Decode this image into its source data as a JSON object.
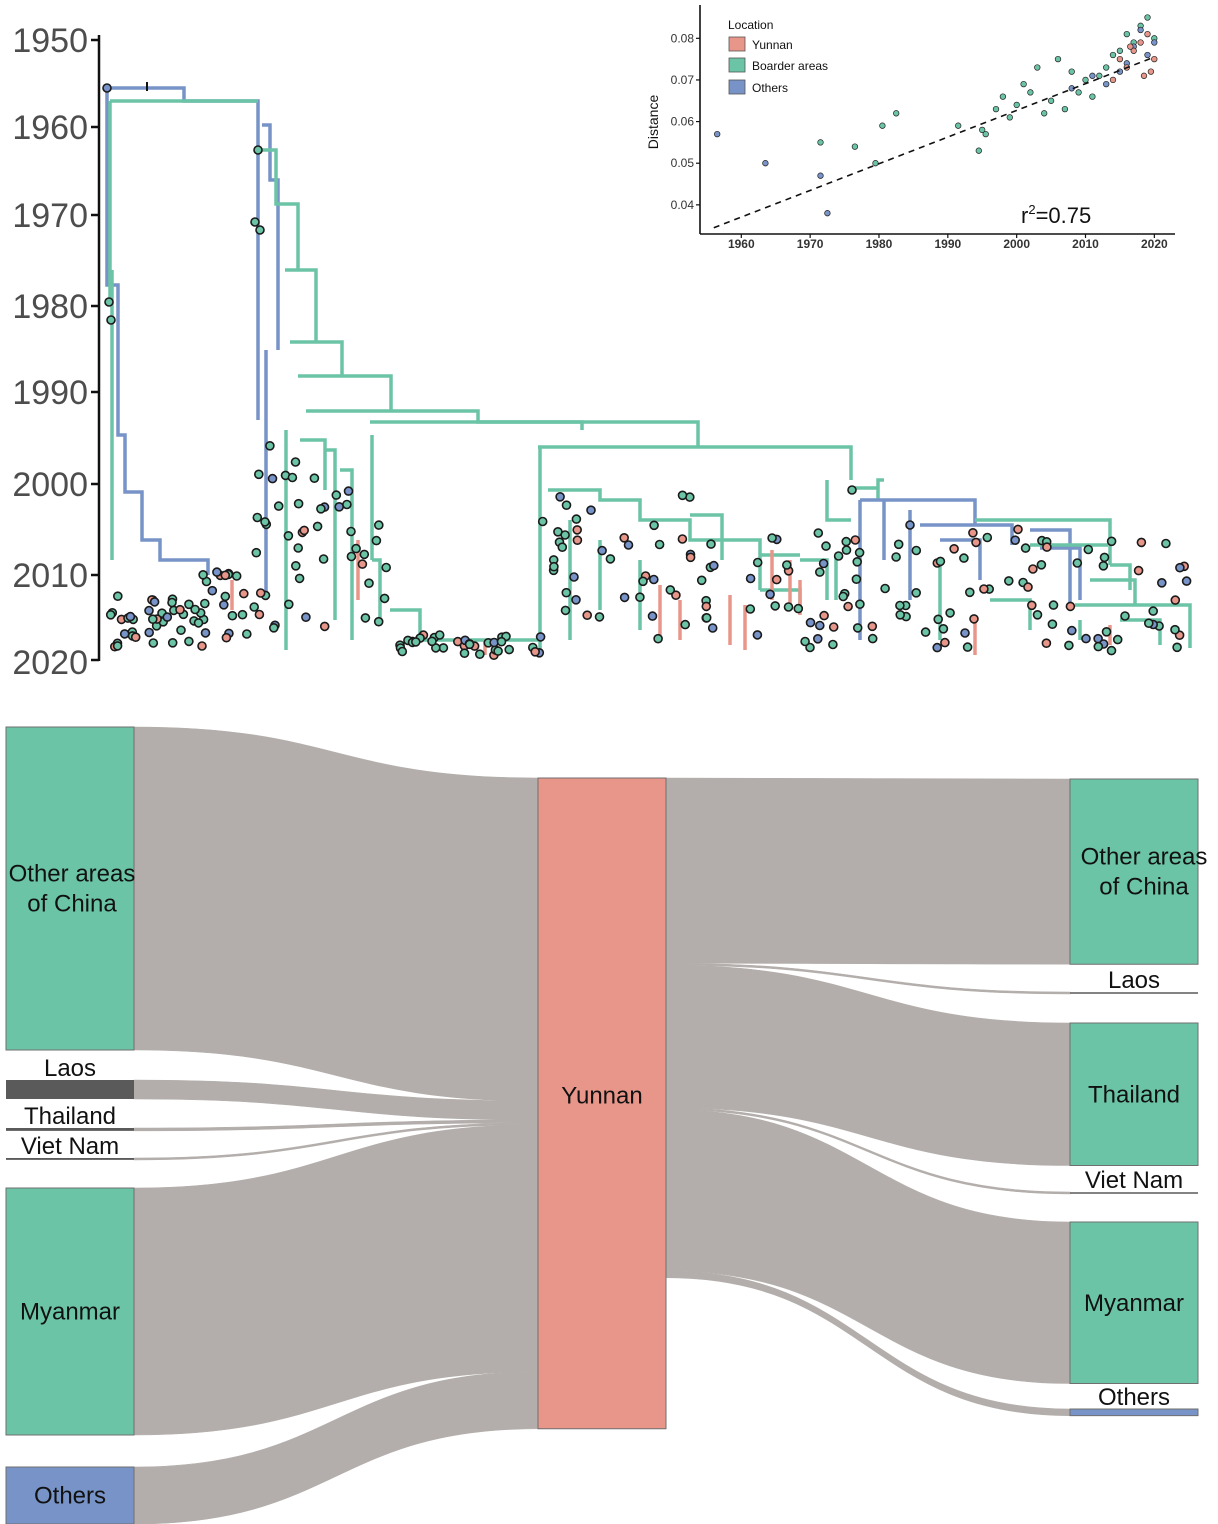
{
  "colors": {
    "yunnan": "#e8968a",
    "border": "#6bc4a6",
    "others": "#7793c7",
    "flow": "#b3aeab",
    "axis": "#111111",
    "year_text": "#4d4d4d"
  },
  "tree_panel": {
    "time_axis": {
      "ticks": [
        "1950",
        "1960",
        "1970",
        "1980",
        "1990",
        "2000",
        "2010",
        "2020"
      ],
      "range": [
        1950,
        2020
      ]
    },
    "legend_groups": [
      "Yunnan",
      "Boarder areas",
      "Others"
    ]
  },
  "chart_data": [
    {
      "type": "scatter",
      "xlabel": "",
      "ylabel": "Distance",
      "xlim": [
        1954,
        2023
      ],
      "ylim": [
        0.033,
        0.088
      ],
      "x_ticks": [
        "1960",
        "1970",
        "1980",
        "1990",
        "2000",
        "2010",
        "2020"
      ],
      "y_ticks": [
        "0.04",
        "0.05",
        "0.06",
        "0.07",
        "0.08"
      ],
      "legend": {
        "title": "Location",
        "entries": [
          "Yunnan",
          "Boarder areas",
          "Others"
        ],
        "placement": "top-left"
      },
      "annotation": {
        "base": "r",
        "superscript": "2",
        "value": "=0.75"
      },
      "regression": {
        "x": [
          1956,
          2020
        ],
        "y": [
          0.0345,
          0.0755
        ],
        "style": "dashed"
      },
      "series": [
        {
          "name": "Others",
          "points": [
            [
              1956.5,
              0.057
            ],
            [
              1963.5,
              0.05
            ],
            [
              1971.5,
              0.047
            ],
            [
              1972.5,
              0.038
            ],
            [
              2008,
              0.068
            ],
            [
              2011,
              0.071
            ],
            [
              2013,
              0.069
            ],
            [
              2015,
              0.072
            ],
            [
              2016,
              0.074
            ],
            [
              2017,
              0.078
            ],
            [
              2018,
              0.082
            ],
            [
              2019,
              0.076
            ],
            [
              2020,
              0.079
            ]
          ]
        },
        {
          "name": "Boarder areas",
          "points": [
            [
              1971.5,
              0.055
            ],
            [
              1976.5,
              0.054
            ],
            [
              1979.5,
              0.05
            ],
            [
              1980.5,
              0.059
            ],
            [
              1982.5,
              0.062
            ],
            [
              1991.5,
              0.059
            ],
            [
              1994.5,
              0.053
            ],
            [
              1995,
              0.058
            ],
            [
              1995.5,
              0.057
            ],
            [
              1997,
              0.063
            ],
            [
              1998,
              0.066
            ],
            [
              1999,
              0.061
            ],
            [
              2000,
              0.064
            ],
            [
              2001,
              0.069
            ],
            [
              2002,
              0.067
            ],
            [
              2003,
              0.073
            ],
            [
              2004,
              0.062
            ],
            [
              2005,
              0.065
            ],
            [
              2006,
              0.075
            ],
            [
              2007,
              0.063
            ],
            [
              2008,
              0.072
            ],
            [
              2009,
              0.067
            ],
            [
              2010,
              0.07
            ],
            [
              2011,
              0.066
            ],
            [
              2012,
              0.071
            ],
            [
              2013,
              0.073
            ],
            [
              2014,
              0.076
            ],
            [
              2015,
              0.077
            ],
            [
              2016,
              0.081
            ],
            [
              2017,
              0.079
            ],
            [
              2018,
              0.083
            ],
            [
              2019,
              0.085
            ],
            [
              2020,
              0.08
            ]
          ]
        },
        {
          "name": "Yunnan",
          "points": [
            [
              2014,
              0.07
            ],
            [
              2015,
              0.075
            ],
            [
              2016,
              0.073
            ],
            [
              2017,
              0.077
            ],
            [
              2018,
              0.079
            ],
            [
              2019,
              0.081
            ],
            [
              2020,
              0.075
            ],
            [
              2019.5,
              0.072
            ],
            [
              2016.5,
              0.078
            ],
            [
              2018.5,
              0.071
            ]
          ]
        }
      ]
    },
    {
      "type": "sankey",
      "sources": [
        {
          "label_lines": [
            "Other areas",
            "of  China"
          ],
          "value": 34,
          "color_key": "border"
        },
        {
          "label_lines": [
            "Laos"
          ],
          "value": 2,
          "color_key": "border"
        },
        {
          "label_lines": [
            "Thailand"
          ],
          "value": 0.3,
          "color_key": "border"
        },
        {
          "label_lines": [
            "Viet Nam"
          ],
          "value": 0.2,
          "color_key": "border"
        },
        {
          "label_lines": [
            "Myanmar"
          ],
          "value": 26,
          "color_key": "border"
        },
        {
          "label_lines": [
            "Others"
          ],
          "value": 6,
          "color_key": "others"
        }
      ],
      "hub": {
        "label_lines": [
          "Yunnan"
        ],
        "value": 68.5,
        "color_key": "yunnan"
      },
      "targets": [
        {
          "label_lines": [
            "Other areas",
            "of  China"
          ],
          "value": 19.5,
          "color_key": "border"
        },
        {
          "label_lines": [
            "Laos"
          ],
          "value": 0.2,
          "color_key": "border"
        },
        {
          "label_lines": [
            "Thailand"
          ],
          "value": 15,
          "color_key": "border"
        },
        {
          "label_lines": [
            "Viet Nam"
          ],
          "value": 0.2,
          "color_key": "border"
        },
        {
          "label_lines": [
            "Myanmar"
          ],
          "value": 17,
          "color_key": "border"
        },
        {
          "label_lines": [
            "Others"
          ],
          "value": 0.7,
          "color_key": "others"
        }
      ]
    }
  ]
}
